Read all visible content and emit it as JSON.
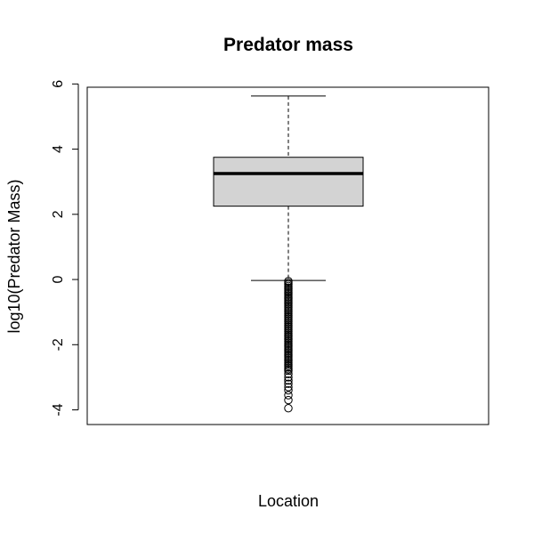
{
  "chart_data": {
    "type": "boxplot",
    "title": "Predator mass",
    "xlabel": "Location",
    "ylabel": "log10(Predator Mass)",
    "ylim": [
      -4.45,
      5.9
    ],
    "y_ticks": [
      -4,
      -2,
      0,
      2,
      4,
      6
    ],
    "y_tick_labels": [
      "-4",
      "-2",
      "0",
      "2",
      "4",
      "6"
    ],
    "grid": false,
    "legend": "none",
    "box": {
      "whisker_low": -0.03,
      "q1": 2.25,
      "median": 3.25,
      "q3": 3.75,
      "whisker_high": 5.63,
      "fill": "#d3d3d3"
    },
    "outliers": [
      -0.05,
      -0.1,
      -0.15,
      -0.2,
      -0.25,
      -0.3,
      -0.35,
      -0.4,
      -0.45,
      -0.5,
      -0.55,
      -0.6,
      -0.65,
      -0.7,
      -0.75,
      -0.8,
      -0.85,
      -0.9,
      -0.95,
      -1.0,
      -1.05,
      -1.1,
      -1.15,
      -1.2,
      -1.25,
      -1.3,
      -1.35,
      -1.4,
      -1.45,
      -1.5,
      -1.55,
      -1.6,
      -1.65,
      -1.7,
      -1.75,
      -1.8,
      -1.85,
      -1.9,
      -1.95,
      -2.0,
      -2.05,
      -2.1,
      -2.15,
      -2.2,
      -2.25,
      -2.3,
      -2.35,
      -2.4,
      -2.45,
      -2.5,
      -2.55,
      -2.6,
      -2.65,
      -2.7,
      -2.75,
      -2.8,
      -2.9,
      -3.0,
      -3.1,
      -3.2,
      -3.3,
      -3.4,
      -3.55,
      -3.7,
      -3.95
    ]
  }
}
